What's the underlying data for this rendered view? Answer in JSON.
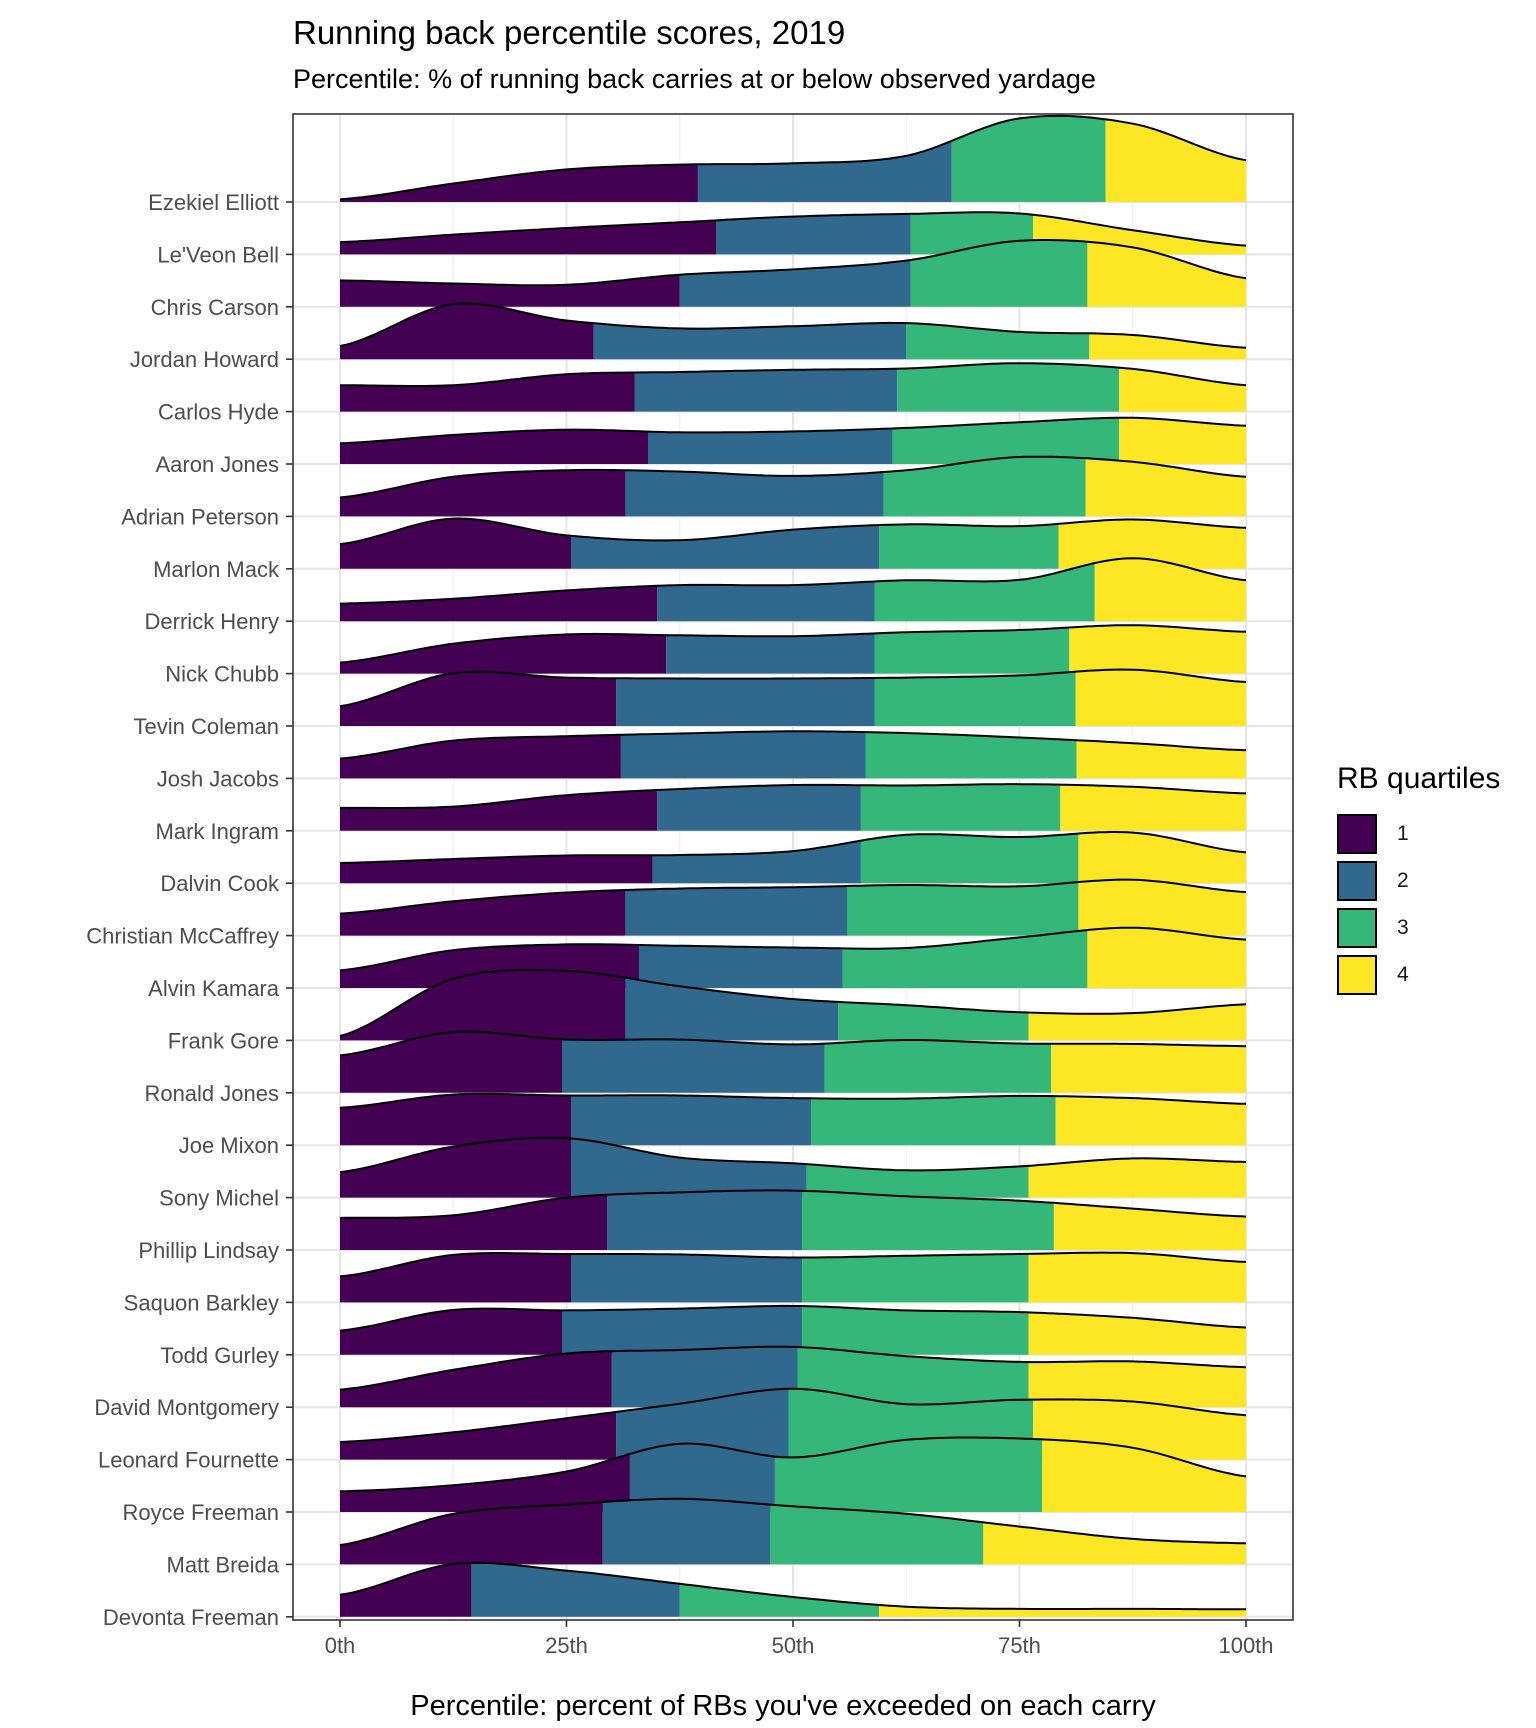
{
  "chart_data": {
    "type": "ridgeline",
    "title": "Running back percentile scores, 2019",
    "subtitle": "Percentile: % of running back carries at or below observed yardage",
    "xlabel": "Percentile: percent of RBs you've exceeded on each carry",
    "ylabel": "",
    "x_ticks": [
      "0th",
      "25th",
      "50th",
      "75th",
      "100th"
    ],
    "xlim": [
      0,
      100
    ],
    "grid": true,
    "legend": {
      "title": "RB quartiles",
      "position": "right",
      "items": [
        {
          "label": "1",
          "color": "#440154"
        },
        {
          "label": "2",
          "color": "#31688E"
        },
        {
          "label": "3",
          "color": "#35B779"
        },
        {
          "label": "4",
          "color": "#FDE725"
        }
      ]
    },
    "players": [
      {
        "name": "Ezekiel Elliott",
        "quartile_breaks": [
          39.5,
          67.5,
          84.5
        ],
        "density": [
          0.06,
          0.42,
          0.74,
          0.85,
          0.88,
          1.05,
          1.9,
          1.78,
          0.95
        ]
      },
      {
        "name": "Le'Veon Bell",
        "quartile_breaks": [
          41.5,
          63,
          76.5
        ],
        "density": [
          0.28,
          0.45,
          0.6,
          0.73,
          0.86,
          0.92,
          0.93,
          0.55,
          0.2
        ]
      },
      {
        "name": "Chris Carson",
        "quartile_breaks": [
          37.5,
          63,
          82.5
        ],
        "density": [
          0.6,
          0.53,
          0.5,
          0.73,
          0.85,
          1.05,
          1.5,
          1.35,
          0.65
        ]
      },
      {
        "name": "Jordan Howard",
        "quartile_breaks": [
          28,
          62.5,
          82.7
        ],
        "density": [
          0.3,
          1.25,
          0.88,
          0.7,
          0.75,
          0.82,
          0.62,
          0.55,
          0.26
        ]
      },
      {
        "name": "Carlos Hyde",
        "quartile_breaks": [
          32.5,
          61.5,
          86
        ],
        "density": [
          0.6,
          0.6,
          0.85,
          0.9,
          0.95,
          0.98,
          1.1,
          0.97,
          0.6
        ]
      },
      {
        "name": "Aaron Jones",
        "quartile_breaks": [
          34,
          61,
          86
        ],
        "density": [
          0.47,
          0.66,
          0.78,
          0.72,
          0.74,
          0.82,
          0.95,
          1.05,
          0.87
        ]
      },
      {
        "name": "Adrian Peterson",
        "quartile_breaks": [
          31.5,
          60,
          82.3
        ],
        "density": [
          0.43,
          0.9,
          1.05,
          1.02,
          0.92,
          1.05,
          1.35,
          1.24,
          0.9
        ]
      },
      {
        "name": "Marlon Mack",
        "quartile_breaks": [
          25.5,
          59.5,
          79.3
        ],
        "density": [
          0.56,
          1.14,
          0.76,
          0.65,
          0.89,
          1.01,
          0.97,
          1.12,
          0.93
        ]
      },
      {
        "name": "Derrick Henry",
        "quartile_breaks": [
          35,
          59,
          83.3
        ],
        "density": [
          0.4,
          0.51,
          0.7,
          0.82,
          0.82,
          0.93,
          0.94,
          1.43,
          0.93
        ]
      },
      {
        "name": "Nick Chubb",
        "quartile_breaks": [
          36,
          59,
          80.5
        ],
        "density": [
          0.25,
          0.68,
          0.89,
          0.87,
          0.85,
          0.94,
          0.99,
          1.1,
          0.95
        ]
      },
      {
        "name": "Tevin Coleman",
        "quartile_breaks": [
          30.5,
          59,
          81.2
        ],
        "density": [
          0.45,
          1.2,
          1.1,
          1.08,
          1.08,
          1.1,
          1.15,
          1.28,
          1.0
        ]
      },
      {
        "name": "Josh Jacobs",
        "quartile_breaks": [
          31,
          58,
          81.3
        ],
        "density": [
          0.45,
          0.86,
          0.96,
          1.02,
          1.07,
          1.03,
          0.93,
          0.8,
          0.64
        ]
      },
      {
        "name": "Mark Ingram",
        "quartile_breaks": [
          35,
          57.5,
          79.5
        ],
        "density": [
          0.52,
          0.55,
          0.81,
          0.95,
          1.04,
          1.03,
          1.06,
          1.0,
          0.85
        ]
      },
      {
        "name": "Dalvin Cook",
        "quartile_breaks": [
          34.5,
          57.5,
          81.5
        ],
        "density": [
          0.46,
          0.55,
          0.63,
          0.64,
          0.73,
          1.1,
          1.05,
          1.15,
          0.7
        ]
      },
      {
        "name": "Christian McCaffrey",
        "quartile_breaks": [
          31.5,
          56,
          81.5
        ],
        "density": [
          0.5,
          0.78,
          0.98,
          1.07,
          1.1,
          1.15,
          1.12,
          1.27,
          0.99
        ]
      },
      {
        "name": "Alvin Kamara",
        "quartile_breaks": [
          33,
          55.5,
          82.5
        ],
        "density": [
          0.4,
          0.86,
          0.99,
          0.96,
          0.92,
          0.91,
          1.15,
          1.37,
          1.1
        ]
      },
      {
        "name": "Frank Gore",
        "quartile_breaks": [
          31.5,
          55,
          76
        ],
        "density": [
          0.1,
          1.4,
          1.58,
          1.23,
          0.94,
          0.8,
          0.64,
          0.62,
          0.82
        ]
      },
      {
        "name": "Ronald Jones",
        "quartile_breaks": [
          24.5,
          53.5,
          78.5
        ],
        "density": [
          0.85,
          1.38,
          1.21,
          1.21,
          1.1,
          1.2,
          1.12,
          1.11,
          1.06
        ]
      },
      {
        "name": "Joe Mixon",
        "quartile_breaks": [
          25.5,
          52,
          79
        ],
        "density": [
          0.85,
          1.15,
          1.13,
          1.13,
          1.07,
          1.06,
          1.12,
          1.07,
          0.94
        ]
      },
      {
        "name": "Sony Michel",
        "quartile_breaks": [
          25.5,
          51.5,
          76
        ],
        "density": [
          0.58,
          1.16,
          1.35,
          0.91,
          0.78,
          0.62,
          0.71,
          0.89,
          0.81
        ]
      },
      {
        "name": "Phillip Lindsay",
        "quartile_breaks": [
          29.5,
          51,
          78.8
        ],
        "density": [
          0.73,
          0.79,
          1.19,
          1.31,
          1.35,
          1.22,
          1.12,
          0.94,
          0.76
        ]
      },
      {
        "name": "Saquon Barkley",
        "quartile_breaks": [
          25.5,
          51,
          76
        ],
        "density": [
          0.59,
          1.08,
          1.1,
          1.09,
          1.02,
          1.06,
          1.1,
          1.12,
          0.92
        ]
      },
      {
        "name": "Todd Gurley",
        "quartile_breaks": [
          24.5,
          51,
          76
        ],
        "density": [
          0.55,
          1.02,
          1.01,
          1.05,
          1.11,
          1.01,
          0.97,
          0.84,
          0.62
        ]
      },
      {
        "name": "David Montgomery",
        "quartile_breaks": [
          30,
          50.5,
          76
        ],
        "density": [
          0.4,
          0.85,
          1.22,
          1.3,
          1.37,
          1.16,
          1.03,
          1.04,
          0.91
        ]
      },
      {
        "name": "Leonard Fournette",
        "quartile_breaks": [
          30.5,
          49.5,
          76.5
        ],
        "density": [
          0.4,
          0.62,
          0.94,
          1.27,
          1.61,
          1.26,
          1.36,
          1.32,
          1.01
        ]
      },
      {
        "name": "Royce Freeman",
        "quartile_breaks": [
          32,
          48,
          77.5
        ],
        "density": [
          0.47,
          0.61,
          0.92,
          1.55,
          1.24,
          1.64,
          1.67,
          1.46,
          0.81
        ]
      },
      {
        "name": "Matt Breida",
        "quartile_breaks": [
          29,
          47.5,
          71
        ],
        "density": [
          0.44,
          1.15,
          1.36,
          1.49,
          1.32,
          1.15,
          0.86,
          0.58,
          0.48
        ]
      },
      {
        "name": "Devonta Freeman",
        "quartile_breaks": [
          14.5,
          37.5,
          59.5
        ],
        "density": [
          0.5,
          1.2,
          1.05,
          0.75,
          0.45,
          0.23,
          0.18,
          0.18,
          0.17
        ]
      }
    ]
  }
}
